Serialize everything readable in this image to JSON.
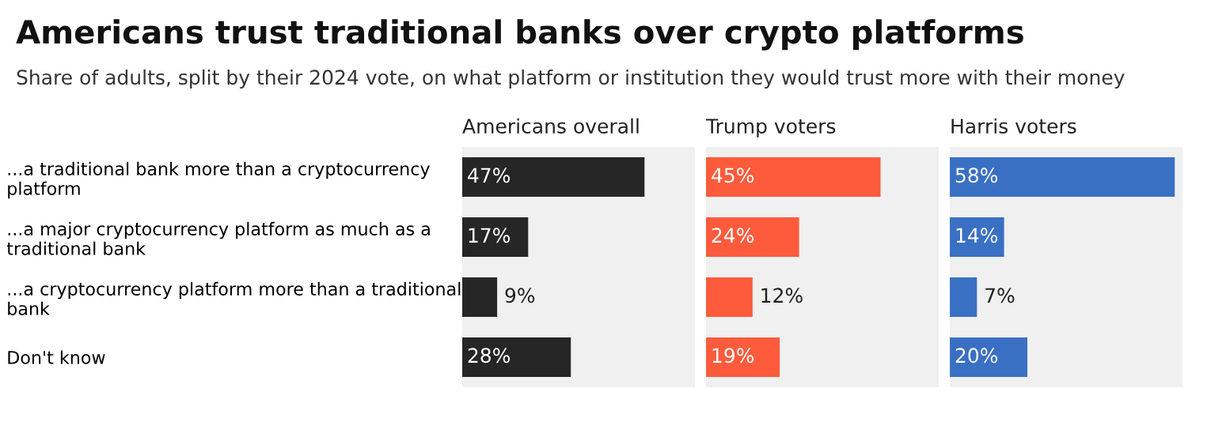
{
  "chart_data": [
    {
      "type": "bar",
      "orientation": "horizontal",
      "title": "Americans trust traditional banks over crypto platforms",
      "subtitle": "Share of adults, split by their 2024 vote, on what platform or institution they would trust more with their money",
      "legend_title": "Americans overall",
      "categories": [
        "...a traditional bank more than a cryptocurrency\nplatform",
        "...a major cryptocurrency platform as much as a\ntraditional bank",
        "...a cryptocurrency platform more than a traditional\nbank",
        "Don't know"
      ],
      "series": [
        {
          "color": "#262626",
          "values": [
            47,
            17,
            9,
            28
          ],
          "value_labels": [
            "47%",
            "17%",
            "9%",
            "28%"
          ]
        }
      ],
      "xlim": [
        0,
        60
      ],
      "tick_labels": "y",
      "grid": false,
      "legend": false
    },
    {
      "type": "bar",
      "orientation": "horizontal",
      "legend_title": "Trump voters",
      "series": [
        {
          "color": "#fd5b3b",
          "values": [
            45,
            24,
            12,
            19
          ],
          "value_labels": [
            "45%",
            "24%",
            "12%",
            "19%"
          ]
        }
      ],
      "xlim": [
        0,
        60
      ],
      "tick_labels": false,
      "grid": false,
      "legend": false
    },
    {
      "type": "bar",
      "orientation": "horizontal",
      "legend_title": "Harris voters",
      "series": [
        {
          "color": "#3a70c4",
          "values": [
            58,
            14,
            7,
            20
          ],
          "value_labels": [
            "58%",
            "14%",
            "7%",
            "20%"
          ]
        }
      ],
      "xlim": [
        0,
        60
      ],
      "tick_labels": false,
      "grid": false,
      "legend": false
    }
  ]
}
